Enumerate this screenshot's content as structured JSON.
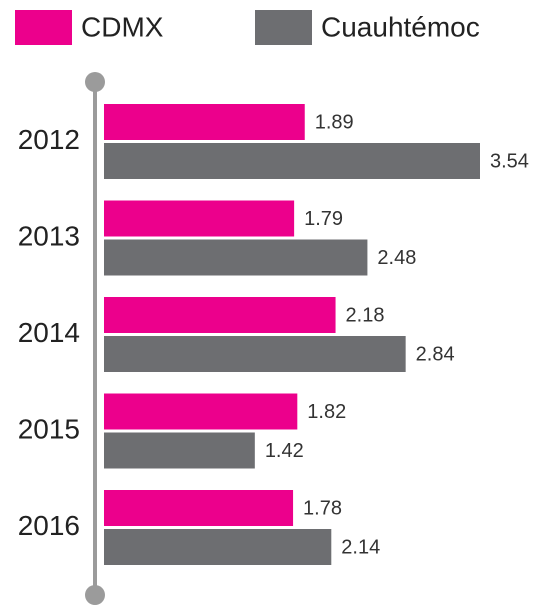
{
  "chart_data": {
    "type": "bar",
    "orientation": "horizontal",
    "categories": [
      "2012",
      "2013",
      "2014",
      "2015",
      "2016"
    ],
    "series": [
      {
        "name": "CDMX",
        "color": "#ec008c",
        "values": [
          1.89,
          1.79,
          2.18,
          1.82,
          1.78
        ]
      },
      {
        "name": "Cuauhtémoc",
        "color": "#6d6e71",
        "values": [
          3.54,
          2.48,
          2.84,
          1.42,
          2.14
        ]
      }
    ]
  }
}
